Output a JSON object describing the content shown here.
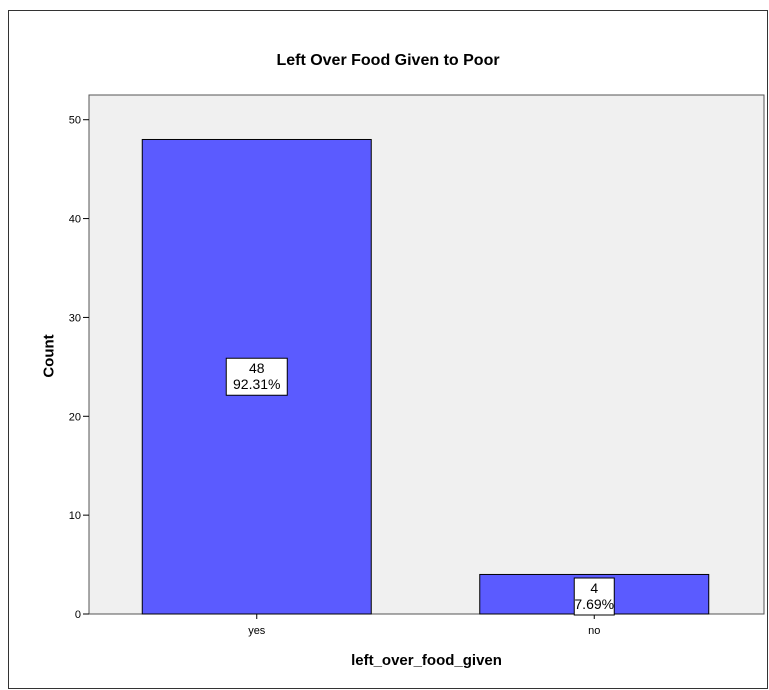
{
  "chart_data": {
    "type": "bar",
    "title": "Left Over Food Given to Poor",
    "xlabel": "left_over_food_given",
    "ylabel": "Count",
    "categories": [
      "yes",
      "no"
    ],
    "values": [
      48,
      4
    ],
    "data_labels": [
      {
        "count": "48",
        "percent": "92.31%"
      },
      {
        "count": "4",
        "percent": "7.69%"
      }
    ],
    "yticks": [
      0,
      10,
      20,
      30,
      40,
      50
    ],
    "ylim": [
      0,
      52.5
    ],
    "grid": false,
    "colors": {
      "bar": "#5b5bff",
      "plot_bg": "#f0f0f0",
      "border": "#000000"
    }
  }
}
